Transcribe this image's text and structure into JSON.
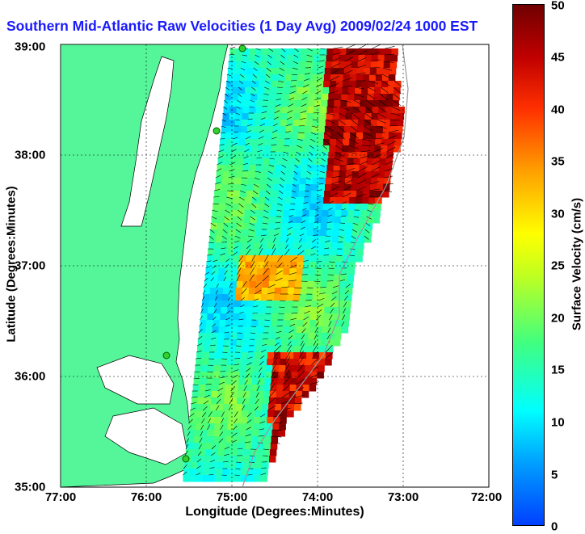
{
  "title": "Southern Mid-Atlantic Raw Velocities (1 Day Avg) 2009/02/24 1000 EST",
  "x_axis": {
    "label": "Longitude (Degrees:Minutes)",
    "ticks": [
      "77:00",
      "76:00",
      "75:00",
      "74:00",
      "73:00",
      "72:00"
    ]
  },
  "y_axis": {
    "label": "Latitude (Degrees:Minutes)",
    "ticks": [
      "39:00",
      "38:00",
      "37:00",
      "36:00",
      "35:00"
    ]
  },
  "colorbar": {
    "label": "Surface Velocity (cm/s)",
    "ticks": [
      "0",
      "5",
      "10",
      "15",
      "20",
      "25",
      "30",
      "35",
      "40",
      "45",
      "50"
    ]
  },
  "colors": {
    "title": "#1a1aff",
    "land": "#55f59a",
    "grid": "#000000"
  }
}
